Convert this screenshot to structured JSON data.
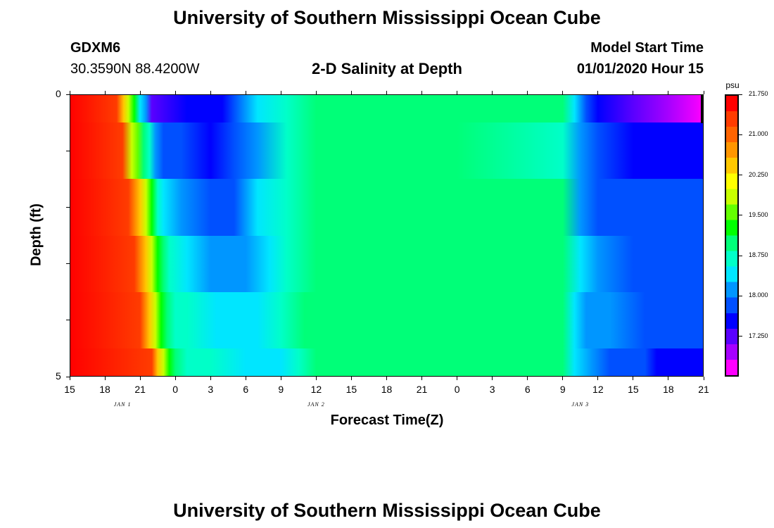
{
  "header": {
    "title": "University of Southern Mississippi Ocean Cube",
    "station_id": "GDXM6",
    "coordinates": "30.3590N 88.4200W",
    "model_start_label": "Model Start Time",
    "model_start_value": "01/01/2020 Hour 15"
  },
  "footer": {
    "title": "University of Southern Mississippi Ocean Cube"
  },
  "colorbar": {
    "unit": "psu",
    "ticks": [
      "21.750",
      "21.000",
      "20.250",
      "19.500",
      "18.750",
      "18.000",
      "17.250"
    ],
    "tick_values": [
      21.75,
      21.0,
      20.25,
      19.5,
      18.75,
      18.0,
      17.25
    ],
    "min": 16.5,
    "max": 21.75,
    "colors": [
      "#ff00ff",
      "#a600ff",
      "#5a00ff",
      "#0000ff",
      "#0050ff",
      "#0096ff",
      "#00e6ff",
      "#00ffc8",
      "#00ff78",
      "#00ff00",
      "#64ff00",
      "#c8ff00",
      "#ffff00",
      "#ffc800",
      "#ff9600",
      "#ff6400",
      "#ff3c00",
      "#ff0000"
    ]
  },
  "chart_data": {
    "type": "heatmap",
    "title": "2-D Salinity at Depth",
    "xlabel": "Forecast Time(Z)",
    "ylabel": "Depth (ft)",
    "unit": "psu",
    "x_tick_labels": [
      "15",
      "18",
      "21",
      "0",
      "3",
      "6",
      "9",
      "12",
      "15",
      "18",
      "21",
      "0",
      "3",
      "6",
      "9",
      "12",
      "15",
      "18",
      "21"
    ],
    "x_hours": [
      15,
      18,
      21,
      24,
      27,
      30,
      33,
      36,
      39,
      42,
      45,
      48,
      51,
      54,
      57,
      60,
      63,
      66,
      69
    ],
    "date_labels": [
      {
        "text": "JAN 1",
        "hour": 19.5
      },
      {
        "text": "JAN 2",
        "hour": 36
      },
      {
        "text": "JAN 3",
        "hour": 58.5
      }
    ],
    "xlim": [
      15,
      69
    ],
    "y_tick_labels": [
      {
        "text": "0",
        "depth": 0
      },
      {
        "text": "5",
        "depth": 5
      }
    ],
    "ylim": [
      0,
      5
    ],
    "depth_bands": [
      0,
      0.5,
      1.5,
      2.5,
      3.5,
      4.5,
      5.0
    ],
    "profiles": [
      {
        "depth": "0-0.5",
        "points": [
          [
            15,
            21.6
          ],
          [
            19,
            21.4
          ],
          [
            19.6,
            20.5
          ],
          [
            20,
            19.9
          ],
          [
            20.5,
            19.2
          ],
          [
            21,
            18.5
          ],
          [
            21.5,
            18.0
          ],
          [
            22,
            17.2
          ],
          [
            25,
            17.4
          ],
          [
            28,
            17.6
          ],
          [
            29,
            17.8
          ],
          [
            31,
            18.3
          ],
          [
            33.5,
            18.8
          ],
          [
            36,
            18.95
          ],
          [
            48,
            19.0
          ],
          [
            57,
            18.85
          ],
          [
            58,
            18.3
          ],
          [
            59,
            17.9
          ],
          [
            60,
            17.6
          ],
          [
            63,
            17.2
          ],
          [
            66,
            16.9
          ],
          [
            69,
            16.7
          ]
        ]
      },
      {
        "depth": "0.5-1.5",
        "points": [
          [
            15,
            21.5
          ],
          [
            19.5,
            21.3
          ],
          [
            20.3,
            20.0
          ],
          [
            20.8,
            19.5
          ],
          [
            21.3,
            19.0
          ],
          [
            21.8,
            18.6
          ],
          [
            22.3,
            18.2
          ],
          [
            23,
            17.9
          ],
          [
            24.5,
            17.7
          ],
          [
            27,
            17.5
          ],
          [
            29,
            17.7
          ],
          [
            31,
            18.2
          ],
          [
            33.5,
            18.8
          ],
          [
            36,
            18.95
          ],
          [
            48,
            19.0
          ],
          [
            57,
            18.8
          ],
          [
            58.5,
            18.1
          ],
          [
            60,
            17.8
          ],
          [
            63,
            17.6
          ],
          [
            66,
            17.5
          ],
          [
            69,
            17.4
          ]
        ]
      },
      {
        "depth": "1.5-2.5",
        "points": [
          [
            15,
            21.5
          ],
          [
            20,
            21.3
          ],
          [
            21,
            20.4
          ],
          [
            21.5,
            19.8
          ],
          [
            22,
            19.3
          ],
          [
            22.5,
            18.8
          ],
          [
            23,
            18.4
          ],
          [
            24.5,
            18.0
          ],
          [
            27,
            17.9
          ],
          [
            29,
            17.95
          ],
          [
            31,
            18.3
          ],
          [
            33.5,
            18.8
          ],
          [
            36,
            18.95
          ],
          [
            48,
            19.0
          ],
          [
            57,
            18.85
          ],
          [
            58.5,
            18.2
          ],
          [
            60,
            17.95
          ],
          [
            63,
            17.85
          ],
          [
            66,
            17.75
          ],
          [
            69,
            17.7
          ]
        ]
      },
      {
        "depth": "2.5-3.5",
        "points": [
          [
            15,
            21.5
          ],
          [
            20.5,
            21.2
          ],
          [
            21.5,
            20.3
          ],
          [
            22,
            19.8
          ],
          [
            22.5,
            19.3
          ],
          [
            23,
            18.9
          ],
          [
            23.5,
            18.6
          ],
          [
            25,
            18.3
          ],
          [
            27,
            18.1
          ],
          [
            30,
            18.1
          ],
          [
            32,
            18.4
          ],
          [
            33.5,
            18.8
          ],
          [
            36,
            18.95
          ],
          [
            48,
            19.0
          ],
          [
            57,
            18.85
          ],
          [
            58.5,
            18.3
          ],
          [
            60,
            18.0
          ],
          [
            63,
            17.9
          ],
          [
            66,
            17.8
          ],
          [
            69,
            17.75
          ]
        ]
      },
      {
        "depth": "3.5-4.5",
        "points": [
          [
            15,
            21.6
          ],
          [
            21,
            21.3
          ],
          [
            21.8,
            20.4
          ],
          [
            22.3,
            19.9
          ],
          [
            22.8,
            19.4
          ],
          [
            23.3,
            19.0
          ],
          [
            24,
            18.7
          ],
          [
            25,
            18.55
          ],
          [
            27.5,
            18.4
          ],
          [
            31,
            18.45
          ],
          [
            33,
            18.7
          ],
          [
            35,
            18.9
          ],
          [
            37,
            18.95
          ],
          [
            48,
            19.0
          ],
          [
            57,
            18.85
          ],
          [
            58,
            18.5
          ],
          [
            59,
            18.2
          ],
          [
            61,
            18.0
          ],
          [
            64,
            17.9
          ],
          [
            69,
            17.8
          ]
        ]
      },
      {
        "depth": "4.5-5.0",
        "points": [
          [
            15,
            21.7
          ],
          [
            22,
            21.3
          ],
          [
            22.5,
            20.3
          ],
          [
            23,
            19.8
          ],
          [
            23.5,
            19.3
          ],
          [
            24,
            18.9
          ],
          [
            25,
            18.7
          ],
          [
            27,
            18.55
          ],
          [
            30,
            18.45
          ],
          [
            33,
            18.5
          ],
          [
            34.5,
            18.7
          ],
          [
            36,
            18.9
          ],
          [
            38,
            18.95
          ],
          [
            48,
            19.0
          ],
          [
            57,
            18.85
          ],
          [
            58,
            18.5
          ],
          [
            59.5,
            18.1
          ],
          [
            61,
            17.95
          ],
          [
            64,
            17.85
          ],
          [
            65,
            17.5
          ],
          [
            69,
            17.4
          ]
        ]
      }
    ]
  }
}
